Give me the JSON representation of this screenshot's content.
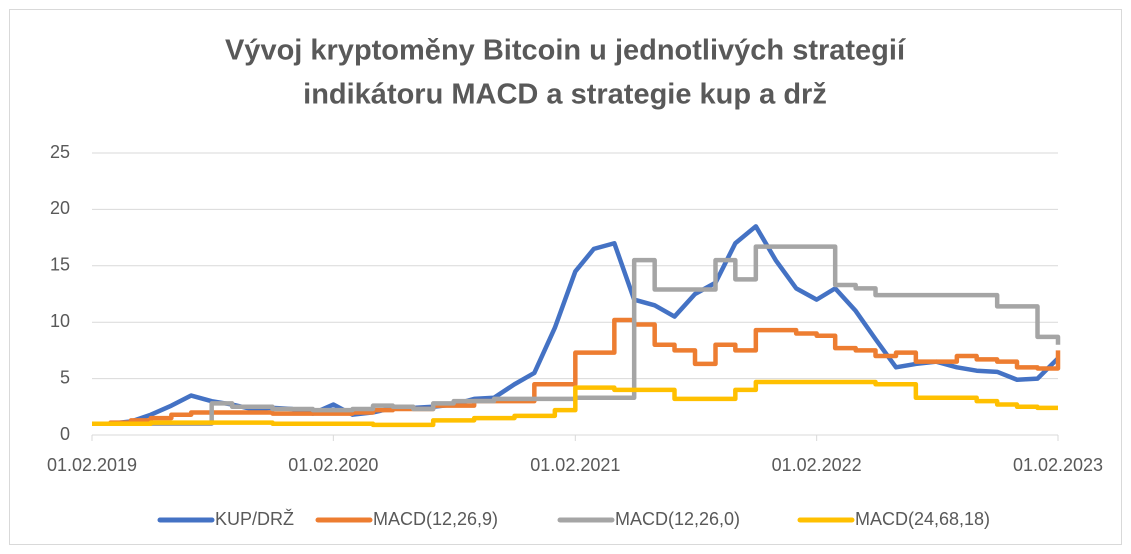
{
  "chart_data": {
    "type": "line",
    "title": [
      "Vývoj kryptoměny Bitcoin u jednotlivých strategií",
      "indikátoru MACD a strategie kup a drž"
    ],
    "x": [
      "2019-02-01",
      "2019-03-01",
      "2019-04-01",
      "2019-05-01",
      "2019-06-01",
      "2019-07-01",
      "2019-08-01",
      "2019-09-01",
      "2019-10-01",
      "2019-11-01",
      "2019-12-01",
      "2020-01-01",
      "2020-02-01",
      "2020-03-01",
      "2020-04-01",
      "2020-05-01",
      "2020-06-01",
      "2020-07-01",
      "2020-08-01",
      "2020-09-01",
      "2020-10-01",
      "2020-11-01",
      "2020-12-01",
      "2021-01-01",
      "2021-02-01",
      "2021-03-01",
      "2021-04-01",
      "2021-05-01",
      "2021-06-01",
      "2021-07-01",
      "2021-08-01",
      "2021-09-01",
      "2021-10-01",
      "2021-11-01",
      "2021-12-01",
      "2022-01-01",
      "2022-02-01",
      "2022-03-01",
      "2022-04-01",
      "2022-05-01",
      "2022-06-01",
      "2022-07-01",
      "2022-08-01",
      "2022-09-01",
      "2022-10-01",
      "2022-11-01",
      "2022-12-01",
      "2023-01-01",
      "2023-02-01"
    ],
    "series": [
      {
        "name": "KUP/DRŽ",
        "color": "#4472c4",
        "step": false,
        "values": [
          1.0,
          1.0,
          1.2,
          1.8,
          2.6,
          3.5,
          3.0,
          2.7,
          2.3,
          2.4,
          2.3,
          1.9,
          2.7,
          1.8,
          2.0,
          2.4,
          2.4,
          2.5,
          2.7,
          3.2,
          3.3,
          4.5,
          5.5,
          9.5,
          14.5,
          16.5,
          17,
          12,
          11.5,
          10.5,
          12.5,
          13.5,
          17,
          18.5,
          15.5,
          13,
          12,
          13,
          11,
          8.5,
          6,
          6.3,
          6.5,
          6,
          5.7,
          5.6,
          4.9,
          5.0,
          6.8
        ]
      },
      {
        "name": "MACD(12,26,9)",
        "color": "#ed7d31",
        "step": true,
        "values": [
          1.0,
          1.1,
          1.3,
          1.5,
          1.8,
          2.0,
          2.0,
          2.0,
          2.0,
          1.9,
          1.9,
          1.9,
          1.9,
          2.0,
          2.2,
          2.3,
          2.3,
          2.6,
          2.6,
          3.0,
          3.0,
          3.0,
          4.5,
          4.5,
          7.3,
          7.3,
          10.2,
          9.8,
          8.0,
          7.5,
          6.3,
          8.0,
          7.5,
          9.3,
          9.3,
          9.0,
          8.8,
          7.7,
          7.5,
          7.0,
          7.3,
          6.5,
          6.5,
          7.0,
          6.7,
          6.5,
          6.0,
          5.9,
          7.5
        ]
      },
      {
        "name": "MACD(12,26,0)",
        "color": "#a5a5a5",
        "step": true,
        "values": [
          1.0,
          1.0,
          1.0,
          1.0,
          1.0,
          1.0,
          2.8,
          2.5,
          2.5,
          2.3,
          2.3,
          2.2,
          2.2,
          2.3,
          2.6,
          2.5,
          2.3,
          2.8,
          3.0,
          3.0,
          3.2,
          3.2,
          3.2,
          3.2,
          3.3,
          3.3,
          3.3,
          15.5,
          12.9,
          12.9,
          12.9,
          15.5,
          13.8,
          16.7,
          16.7,
          16.7,
          16.7,
          13.3,
          13.0,
          12.4,
          12.4,
          12.4,
          12.4,
          12.4,
          12.4,
          11.4,
          11.4,
          8.7,
          8.0
        ]
      },
      {
        "name": "MACD(24,68,18)",
        "color": "#ffc000",
        "step": true,
        "values": [
          1.0,
          1.0,
          1.0,
          1.1,
          1.1,
          1.1,
          1.1,
          1.1,
          1.1,
          1.0,
          1.0,
          1.0,
          1.0,
          1.0,
          0.9,
          0.9,
          0.9,
          1.3,
          1.3,
          1.5,
          1.5,
          1.7,
          1.7,
          2.2,
          4.2,
          4.2,
          4.0,
          4.0,
          4.0,
          3.2,
          3.2,
          3.2,
          4.0,
          4.7,
          4.7,
          4.7,
          4.7,
          4.7,
          4.7,
          4.5,
          4.5,
          3.3,
          3.3,
          3.3,
          3.0,
          2.7,
          2.5,
          2.4,
          2.4
        ]
      }
    ],
    "xlim": [
      "2019-02-01",
      "2023-02-01"
    ],
    "xticks": [
      {
        "value": "2019-02-01",
        "label": "01.02.2019"
      },
      {
        "value": "2020-02-01",
        "label": "01.02.2020"
      },
      {
        "value": "2021-02-01",
        "label": "01.02.2021"
      },
      {
        "value": "2022-02-01",
        "label": "01.02.2022"
      },
      {
        "value": "2023-02-01",
        "label": "01.02.2023"
      }
    ],
    "ylim": [
      0,
      25
    ],
    "yticks": [
      0,
      5,
      10,
      15,
      20,
      25
    ],
    "grid": true,
    "legend": "bottom"
  }
}
